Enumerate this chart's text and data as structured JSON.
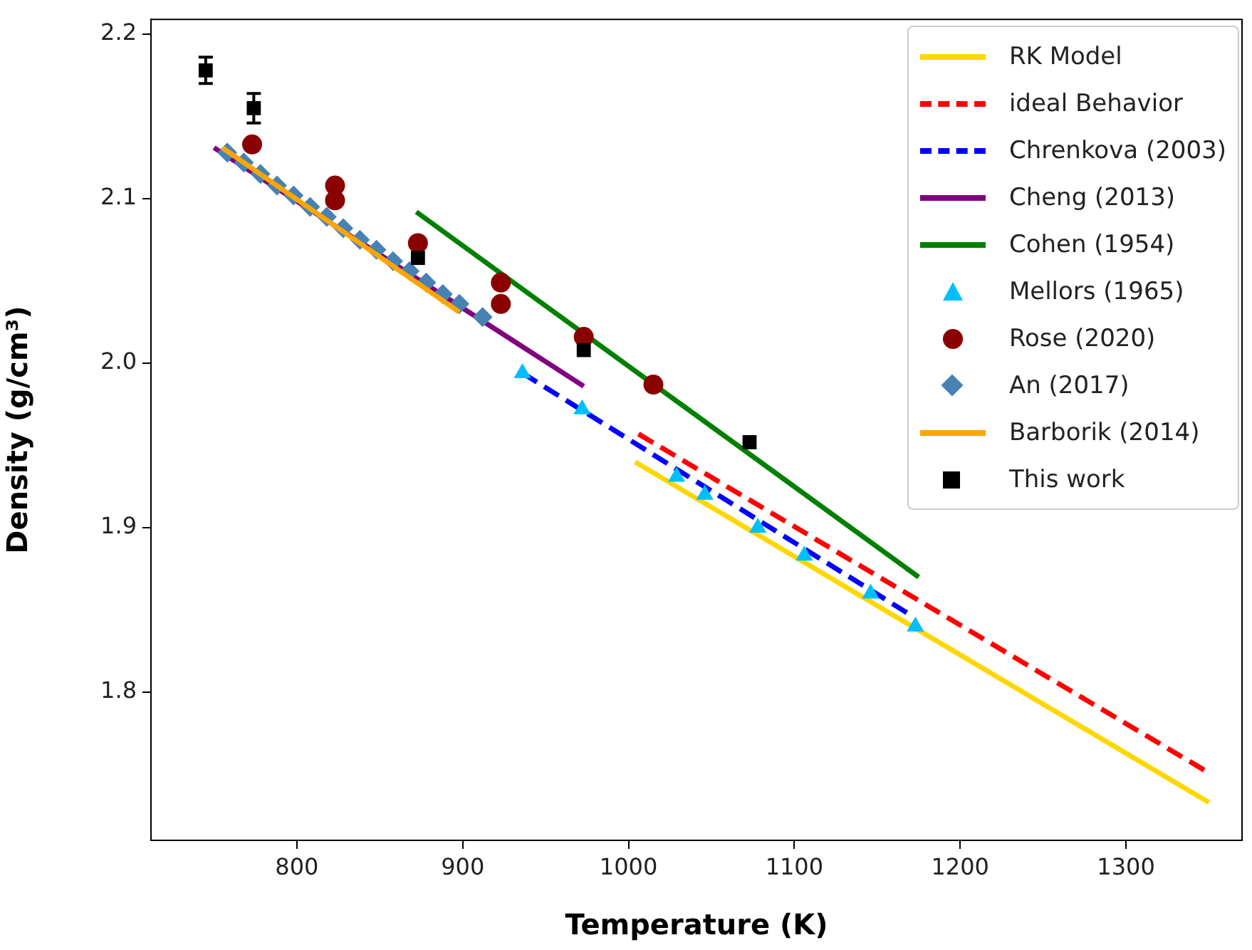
{
  "chart_data": {
    "type": "scatter",
    "xlabel": "Temperature (K)",
    "ylabel": "Density (g/cm³)",
    "xlim": [
      712,
      1370
    ],
    "xticks": [
      800,
      900,
      1000,
      1100,
      1200,
      1300
    ],
    "ylim": [
      1.71,
      2.209
    ],
    "yticks": [
      1.8,
      1.9,
      {
        "value": 2.0,
        "label": "2.0"
      },
      2.1,
      2.2
    ],
    "grid": false,
    "legend": "top right",
    "series": [
      {
        "name": "RK Model",
        "type": "line",
        "color": "#ffd700",
        "marker": "none",
        "line_style": "solid",
        "x": [
          1004,
          1350
        ],
        "values": [
          1.94,
          1.733
        ]
      },
      {
        "name": "ideal Behavior",
        "type": "line",
        "color": "#ff0000",
        "marker": "none",
        "line_style": "dashed",
        "x": [
          1006,
          1350
        ],
        "values": [
          1.957,
          1.751
        ]
      },
      {
        "name": "Chrenkova (2003)",
        "type": "line",
        "color": "#0000ff",
        "marker": "none",
        "line_style": "dashed",
        "x": [
          936,
          1170
        ],
        "values": [
          1.994,
          1.847
        ]
      },
      {
        "name": "Cheng (2013)",
        "type": "line",
        "color": "#800080",
        "marker": "none",
        "line_style": "solid",
        "x": [
          750,
          973
        ],
        "values": [
          2.131,
          1.986
        ]
      },
      {
        "name": "Cohen (1954)",
        "type": "line",
        "color": "#008000",
        "marker": "none",
        "line_style": "solid",
        "x": [
          872,
          1175
        ],
        "values": [
          2.092,
          1.87
        ]
      },
      {
        "name": "Mellors (1965)",
        "type": "scatter",
        "color": "#00bfff",
        "marker": "triangle",
        "x": [
          936,
          972,
          1029,
          1046,
          1078,
          1106,
          1146,
          1173
        ],
        "values": [
          1.994,
          1.972,
          1.931,
          1.92,
          1.9,
          1.883,
          1.86,
          1.84
        ]
      },
      {
        "name": "Rose (2020)",
        "type": "scatter",
        "color": "#8b0000",
        "marker": "circle",
        "x": [
          773,
          823,
          823,
          873,
          923,
          923,
          973,
          1015
        ],
        "values": [
          2.133,
          2.108,
          2.099,
          2.073,
          2.049,
          2.036,
          2.016,
          1.987
        ]
      },
      {
        "name": "An (2017)",
        "type": "scatter",
        "color": "#4682b4",
        "marker": "diamond",
        "x": [
          758,
          768,
          778,
          788,
          798,
          808,
          818,
          828,
          838,
          848,
          858,
          868,
          878,
          888,
          898,
          912
        ],
        "values": [
          2.128,
          2.122,
          2.115,
          2.108,
          2.102,
          2.095,
          2.089,
          2.082,
          2.075,
          2.069,
          2.062,
          2.056,
          2.049,
          2.042,
          2.036,
          2.028
        ]
      },
      {
        "name": "Barborik (2014)",
        "type": "line",
        "color": "#ffa500",
        "marker": "none",
        "line_style": "solid",
        "x": [
          755,
          898
        ],
        "values": [
          2.131,
          2.031
        ]
      },
      {
        "name": "This work",
        "type": "scatter",
        "color": "#000000",
        "marker": "square",
        "x": [
          745,
          774,
          873,
          973,
          1073
        ],
        "values": [
          2.178,
          2.155,
          2.064,
          2.008,
          1.952
        ],
        "errors": [
          0.008,
          0.009,
          null,
          null,
          null
        ]
      }
    ]
  }
}
